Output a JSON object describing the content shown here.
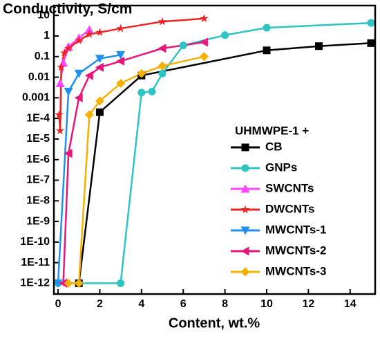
{
  "chart_data": {
    "type": "line",
    "title": "Conductivity, S/cm",
    "x_label": "Content, wt.%",
    "legend_title": "UHMWPE-1 +",
    "log_y": true,
    "xlim": [
      -0.2,
      15.2
    ],
    "xticks": [
      0,
      2,
      4,
      6,
      8,
      10,
      12,
      14
    ],
    "ylim": [
      3e-13,
      30
    ],
    "yticks": [
      10,
      1,
      0.1,
      0.01,
      0.001,
      {
        "value": 0.0001,
        "label": "1E-4"
      },
      {
        "value": 1e-05,
        "label": "1E-5"
      },
      {
        "value": 1e-06,
        "label": "1E-6"
      },
      {
        "value": 1e-07,
        "label": "1E-7"
      },
      {
        "value": 1e-08,
        "label": "1E-8"
      },
      {
        "value": 1e-09,
        "label": "1E-9"
      },
      {
        "value": 1e-10,
        "label": "1E-10"
      },
      {
        "value": 1e-11,
        "label": "1E-11"
      },
      {
        "value": 1e-12,
        "label": "1E-12"
      }
    ],
    "series": [
      {
        "name": "CB",
        "color": "#000000",
        "marker": "square",
        "x": [
          1,
          2,
          4,
          10,
          12.5,
          15
        ],
        "values": [
          1e-12,
          0.0002,
          0.012,
          0.2,
          0.32,
          0.45
        ]
      },
      {
        "name": "GNPs",
        "color": "#2ec4c4",
        "marker": "circle",
        "x": [
          0,
          3,
          4,
          4.5,
          5,
          6,
          8,
          10,
          15
        ],
        "values": [
          1e-12,
          1e-12,
          0.0018,
          0.002,
          0.015,
          0.35,
          1.1,
          2.5,
          4.3
        ]
      },
      {
        "name": "SWCNTs",
        "color": "#ff44ff",
        "marker": "triangle-up",
        "x": [
          0.1,
          0.25,
          0.5,
          1,
          1.5
        ],
        "values": [
          0.005,
          0.05,
          0.3,
          0.8,
          2
        ]
      },
      {
        "name": "DWCNTs",
        "color": "#ee2222",
        "marker": "star",
        "x": [
          0.05,
          0.1,
          0.15,
          0.3,
          0.5,
          1,
          1.5,
          2,
          3,
          5,
          7
        ],
        "values": [
          0.00015,
          2.5e-05,
          0.03,
          0.15,
          0.25,
          0.6,
          1.2,
          1.5,
          2.3,
          5,
          7
        ]
      },
      {
        "name": "MWCNTs-1",
        "color": "#1e90ee",
        "marker": "triangle-down",
        "x": [
          0,
          0.5,
          1,
          2,
          3
        ],
        "values": [
          1e-12,
          0.002,
          0.015,
          0.08,
          0.12
        ]
      },
      {
        "name": "MWCNTs-2",
        "color": "#e8157a",
        "marker": "triangle-left",
        "x": [
          0.25,
          0.5,
          1,
          1.5,
          2,
          3,
          5,
          7
        ],
        "values": [
          1e-12,
          2e-06,
          0.001,
          0.012,
          0.03,
          0.06,
          0.25,
          0.5
        ]
      },
      {
        "name": "MWCNTs-3",
        "color": "#f5b000",
        "marker": "diamond",
        "x": [
          0.5,
          1,
          1.5,
          2,
          3,
          4,
          5,
          7
        ],
        "values": [
          1e-12,
          1e-12,
          0.00015,
          0.0007,
          0.005,
          0.015,
          0.035,
          0.1
        ]
      }
    ]
  }
}
